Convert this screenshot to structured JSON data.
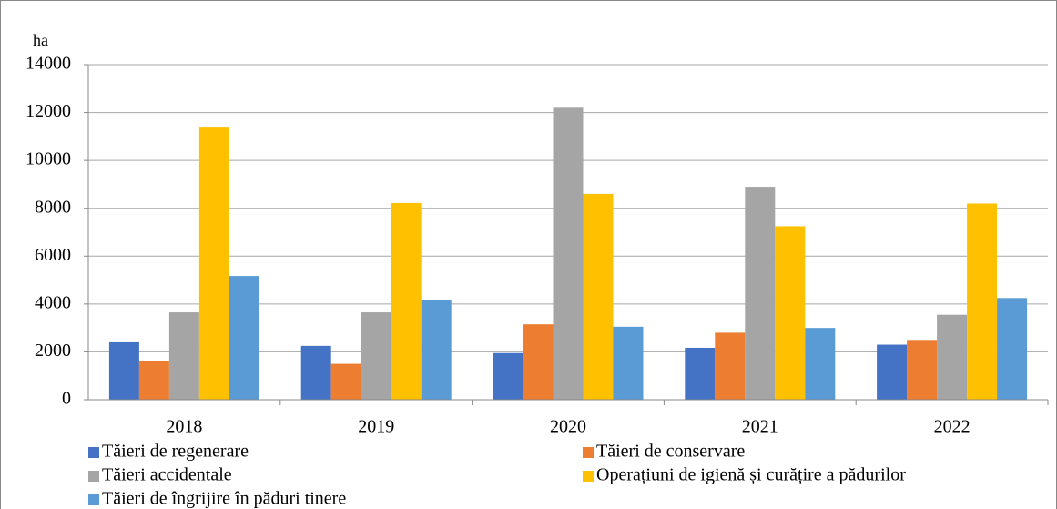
{
  "chart_data": {
    "type": "bar",
    "y_label": "ha",
    "categories": [
      "2018",
      "2019",
      "2020",
      "2021",
      "2022"
    ],
    "series": [
      {
        "name": "Tăieri de regenerare",
        "color": "#4472c4",
        "values": [
          2400,
          2250,
          1950,
          2170,
          2300
        ]
      },
      {
        "name": "Tăieri de conservare",
        "color": "#ed7d31",
        "values": [
          1600,
          1500,
          3150,
          2800,
          2500
        ]
      },
      {
        "name": "Tăieri accidentale",
        "color": "#a5a5a5",
        "values": [
          3650,
          3650,
          12200,
          8900,
          3550
        ]
      },
      {
        "name": "Operațiuni de igienă și curățire a pădurilor",
        "color": "#ffc000",
        "values": [
          11370,
          8220,
          8600,
          7250,
          8200
        ]
      },
      {
        "name": "Tăieri de îngrijire în păduri tinere",
        "color": "#5b9bd5",
        "values": [
          5170,
          4150,
          3050,
          3000,
          4250
        ]
      }
    ],
    "ylim": [
      0,
      14000
    ],
    "yticks": [
      0,
      2000,
      4000,
      6000,
      8000,
      10000,
      12000,
      14000
    ],
    "grid": true,
    "legend": "bottom"
  }
}
